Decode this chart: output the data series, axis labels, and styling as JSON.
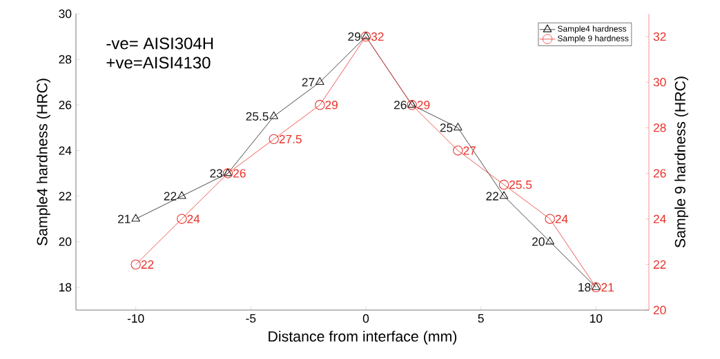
{
  "chart_data": {
    "type": "line",
    "x": [
      -10,
      -8,
      -6,
      -4,
      -2,
      0,
      2,
      4,
      6,
      8,
      10
    ],
    "series": [
      {
        "name": "Sample4 hardness",
        "color": "#1a1a1a",
        "marker": "triangle",
        "values": [
          21,
          22,
          23,
          25.5,
          27,
          29,
          26,
          25,
          22,
          20,
          18
        ]
      },
      {
        "name": "Sample 9 hardness",
        "color": "#e8322a",
        "marker": "circle",
        "axis": "y2",
        "values": [
          22,
          24,
          26,
          27.5,
          29,
          32,
          29,
          27,
          25.5,
          24,
          21
        ]
      }
    ],
    "xlabel": "Distance from interface (mm)",
    "ylabel": "Sample4 hardness (HRC)",
    "y2label": "Sample 9 hardness (HRC)",
    "xlim": [
      -12.6,
      12.3
    ],
    "xticks": [
      -10,
      -5,
      0,
      5,
      10
    ],
    "ylim": [
      17,
      30
    ],
    "yticks": [
      18,
      20,
      22,
      24,
      26,
      28,
      30
    ],
    "y2lim": [
      20,
      33
    ],
    "y2ticks": [
      20,
      22,
      24,
      26,
      28,
      30,
      32
    ],
    "annotations": [
      "-ve= AISI304H",
      "+ve=AISI4130"
    ],
    "data_labels": true,
    "legend": "top right",
    "grid": false
  }
}
